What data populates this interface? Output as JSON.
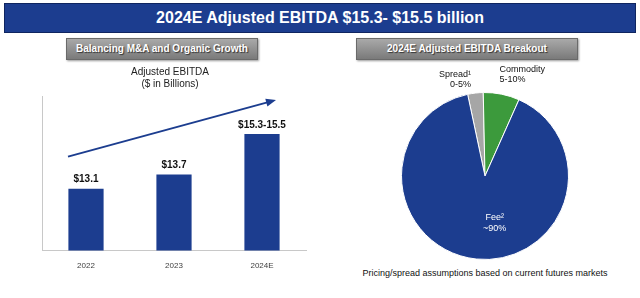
{
  "banner": "2024E Adjusted EBITDA $15.3- $15.5 billion",
  "chart_data": [
    {
      "type": "bar",
      "heading": "Balancing M&A and Organic Growth",
      "title": [
        "Adjusted EBITDA",
        "($ in Billions)"
      ],
      "categories": [
        "2022",
        "2023",
        "2024E"
      ],
      "values": [
        13.1,
        13.7,
        15.4
      ],
      "value_labels": [
        "$13.1",
        "$13.7",
        "$15.3-15.5"
      ],
      "color": "#1c3d8f",
      "ylim": [
        10.5,
        17
      ],
      "grid": false,
      "tick_labels": "x",
      "data_labels": true
    },
    {
      "type": "pie",
      "heading": "2024E Adjusted EBITDA Breakout",
      "categories": [
        "Spread¹",
        "Commodity",
        "Fee²"
      ],
      "values": [
        3,
        7,
        90
      ],
      "value_labels": [
        "0-5%",
        "5-10%",
        "~90%"
      ],
      "colors": [
        "#a6a6a6",
        "#3c9a3c",
        "#1c3d8f"
      ],
      "data_labels": true,
      "note": "Pricing/spread assumptions based on current futures markets"
    }
  ]
}
